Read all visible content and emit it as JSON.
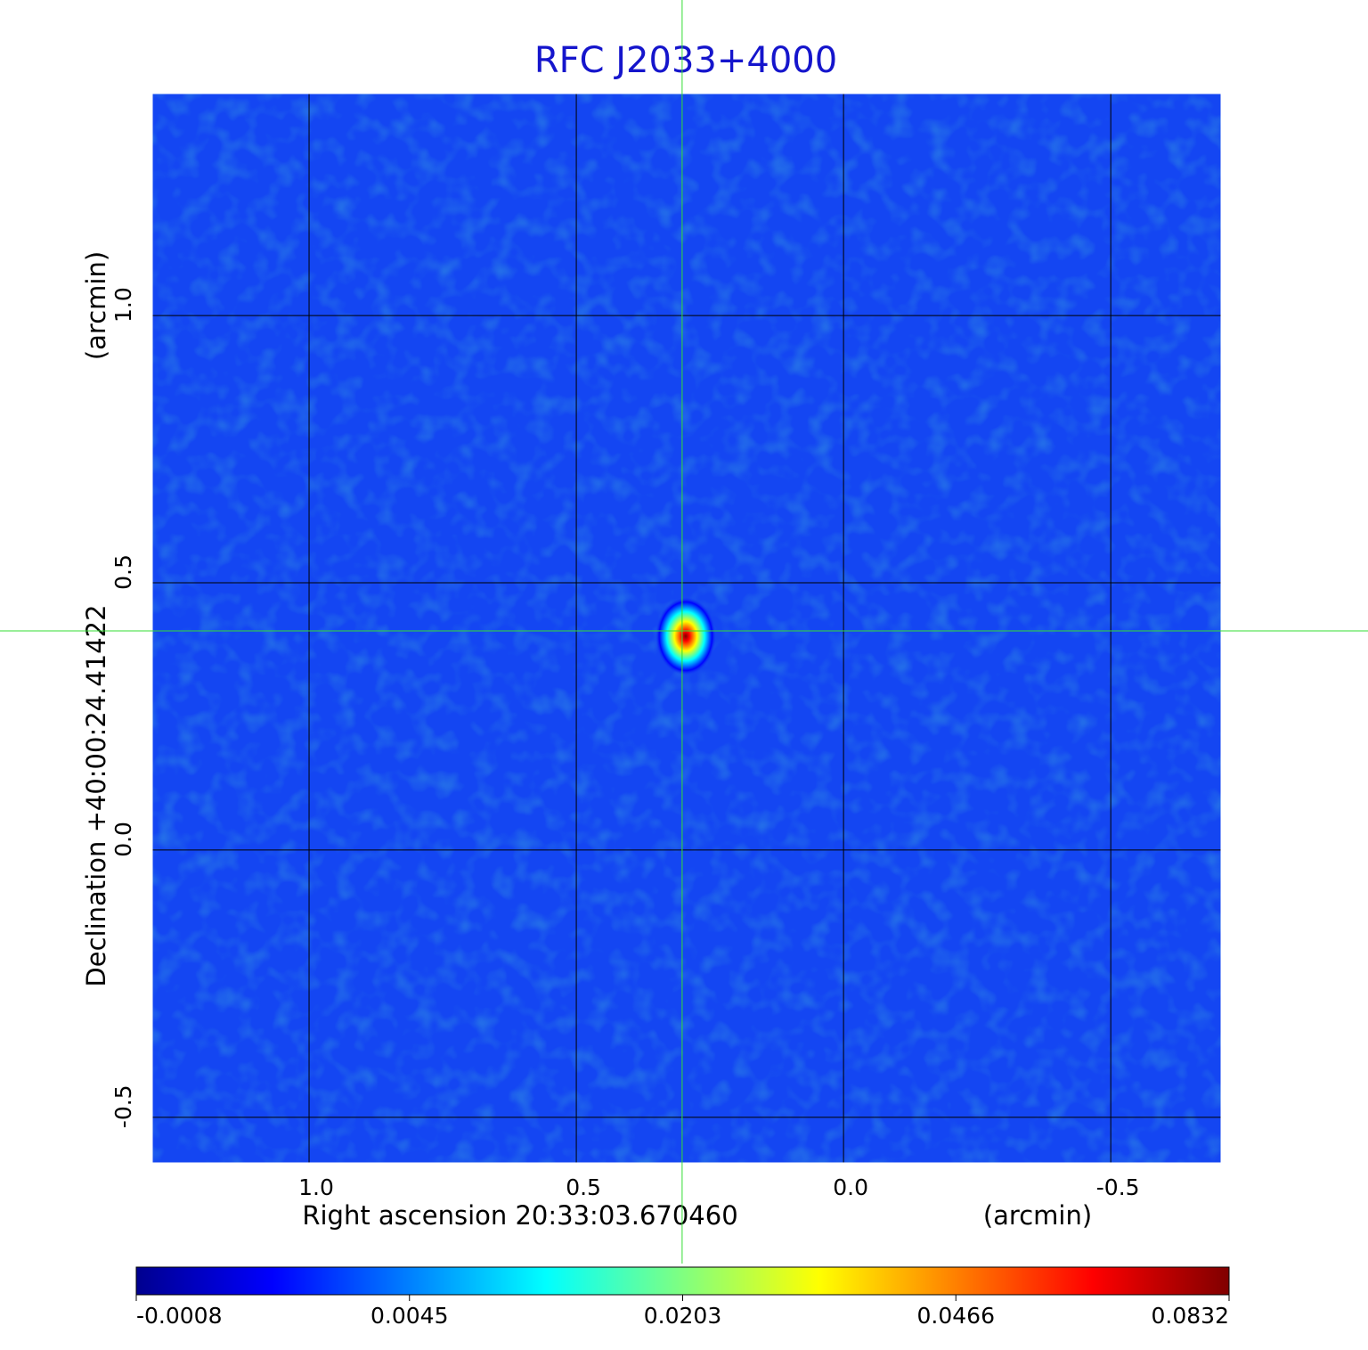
{
  "chart_data": {
    "type": "image",
    "title": "RFC J2033+4000",
    "x_label": "Right ascension  20:33:03.670460",
    "x_unit": "(arcmin)",
    "y_label": "Declination  +40:00:24.41422",
    "y_unit": "(arcmin)",
    "xlim": [
      1.295,
      -0.708
    ],
    "ylim": [
      -0.587,
      1.417
    ],
    "xticks": [
      {
        "value": 1,
        "label": "1.0"
      },
      0.5,
      {
        "value": 0,
        "label": "0.0"
      },
      -0.5
    ],
    "yticks": [
      -0.5,
      {
        "value": 0,
        "label": "0.0"
      },
      0.5,
      {
        "value": 1,
        "label": "1.0"
      }
    ],
    "grid": true,
    "background_color": "#1446f2",
    "source": {
      "x": 0.302,
      "y": 0.41,
      "peak": 0.0832
    },
    "crosshair_color": "#33dd33",
    "colorbar_ticks": [
      -0.0008,
      0.0045,
      0.0203,
      0.0466,
      0.0832
    ],
    "colormap": [
      "#00008f",
      "#0000ff",
      "#0080ff",
      "#00ffff",
      "#80ff80",
      "#ffff00",
      "#ff8000",
      "#ff0000",
      "#800000"
    ]
  }
}
